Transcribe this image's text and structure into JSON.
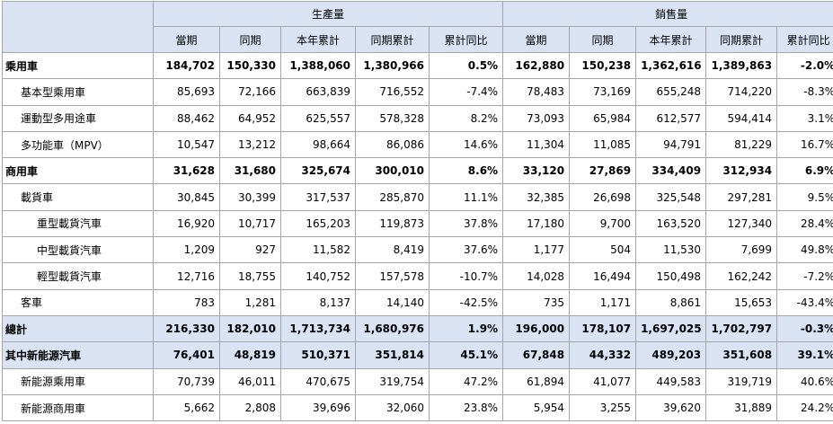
{
  "header": {
    "group1": "生產量",
    "group2": "銷售量",
    "cols": [
      "當期",
      "同期",
      "本年累計",
      "同期累計",
      "累計同比",
      "當期",
      "同期",
      "本年累計",
      "同期累計",
      "累計同比"
    ]
  },
  "rows": [
    {
      "label": "乘用車",
      "level": 0,
      "style": "bold",
      "values": [
        "184,702",
        "150,330",
        "1,388,060",
        "1,380,966",
        "0.5%",
        "162,880",
        "150,238",
        "1,362,616",
        "1,389,863",
        "-2.0%"
      ]
    },
    {
      "label": "基本型乘用車",
      "level": 1,
      "style": "",
      "values": [
        "85,693",
        "72,166",
        "663,839",
        "716,552",
        "-7.4%",
        "78,483",
        "73,169",
        "655,248",
        "714,220",
        "-8.3%"
      ]
    },
    {
      "label": "運動型多用途車",
      "level": 1,
      "style": "",
      "values": [
        "88,462",
        "64,952",
        "625,557",
        "578,328",
        "8.2%",
        "73,093",
        "65,984",
        "612,577",
        "594,414",
        "3.1%"
      ]
    },
    {
      "label": "多功能車（MPV）",
      "level": 1,
      "style": "",
      "values": [
        "10,547",
        "13,212",
        "98,664",
        "86,086",
        "14.6%",
        "11,304",
        "11,085",
        "94,791",
        "81,229",
        "16.7%"
      ]
    },
    {
      "label": "商用車",
      "level": 0,
      "style": "bold",
      "values": [
        "31,628",
        "31,680",
        "325,674",
        "300,010",
        "8.6%",
        "33,120",
        "27,869",
        "334,409",
        "312,934",
        "6.9%"
      ]
    },
    {
      "label": "載貨車",
      "level": 1,
      "style": "",
      "values": [
        "30,845",
        "30,399",
        "317,537",
        "285,870",
        "11.1%",
        "32,385",
        "26,698",
        "325,548",
        "297,281",
        "9.5%"
      ]
    },
    {
      "label": "重型載貨汽車",
      "level": 2,
      "style": "",
      "values": [
        "16,920",
        "10,717",
        "165,203",
        "119,873",
        "37.8%",
        "17,180",
        "9,700",
        "163,520",
        "127,340",
        "28.4%"
      ]
    },
    {
      "label": "中型載貨汽車",
      "level": 2,
      "style": "",
      "values": [
        "1,209",
        "927",
        "11,582",
        "8,419",
        "37.6%",
        "1,177",
        "504",
        "11,530",
        "7,699",
        "49.8%"
      ]
    },
    {
      "label": "輕型載貨汽車",
      "level": 2,
      "style": "",
      "values": [
        "12,716",
        "18,755",
        "140,752",
        "157,578",
        "-10.7%",
        "14,028",
        "16,494",
        "150,498",
        "162,242",
        "-7.2%"
      ]
    },
    {
      "label": "客車",
      "level": 1,
      "style": "",
      "values": [
        "783",
        "1,281",
        "8,137",
        "14,140",
        "-42.5%",
        "735",
        "1,171",
        "8,861",
        "15,653",
        "-43.4%"
      ]
    },
    {
      "label": "總計",
      "level": 0,
      "style": "blue bold",
      "values": [
        "216,330",
        "182,010",
        "1,713,734",
        "1,680,976",
        "1.9%",
        "196,000",
        "178,107",
        "1,697,025",
        "1,702,797",
        "-0.3%"
      ]
    },
    {
      "label": "其中新能源汽車",
      "level": 0,
      "style": "blue bold",
      "values": [
        "76,401",
        "48,819",
        "510,371",
        "351,814",
        "45.1%",
        "67,848",
        "44,332",
        "489,203",
        "351,608",
        "39.1%"
      ]
    },
    {
      "label": "新能源乘用車",
      "level": 1,
      "style": "",
      "values": [
        "70,739",
        "46,011",
        "470,675",
        "319,754",
        "47.2%",
        "61,894",
        "41,077",
        "449,583",
        "319,719",
        "40.6%"
      ]
    },
    {
      "label": "新能源商用車",
      "level": 1,
      "style": "",
      "values": [
        "5,662",
        "2,808",
        "39,696",
        "32,060",
        "23.8%",
        "5,954",
        "3,255",
        "39,620",
        "31,889",
        "24.2%"
      ]
    }
  ]
}
